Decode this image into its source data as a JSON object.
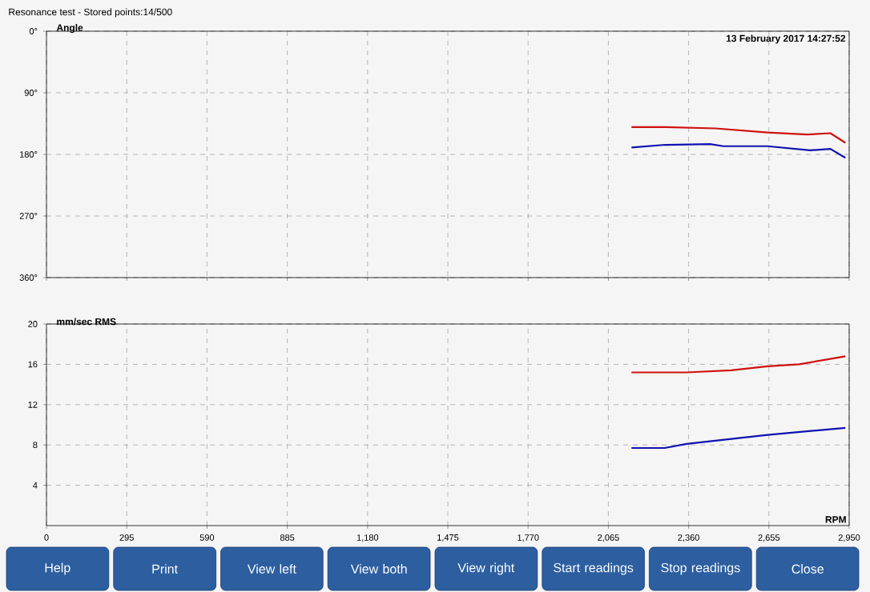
{
  "chart_data": [
    {
      "type": "line",
      "title": "Resonance test - Stored points:14/500",
      "ylabel": "Angle",
      "annotations": [
        "13 February 2017 14:27:52"
      ],
      "xlim": [
        0,
        2950
      ],
      "xticks": [
        0,
        295,
        590,
        885,
        1180,
        1475,
        1770,
        2065,
        2360,
        2655,
        2950
      ],
      "ylim": [
        360,
        0
      ],
      "yticks": [
        {
          "value": 0,
          "label": "0°"
        },
        {
          "value": 90,
          "label": "90°"
        },
        {
          "value": 180,
          "label": "180°"
        },
        {
          "value": 270,
          "label": "270°"
        },
        {
          "value": 360,
          "label": "360°"
        }
      ],
      "tick_labels": "y",
      "grid": true,
      "marker": "none",
      "line_style": "solid",
      "series": [
        {
          "color": "#d01010",
          "x": [
            2150,
            2274,
            2459,
            2650,
            2795,
            2881,
            2936
          ],
          "values": [
            140,
            140,
            142,
            148,
            151,
            149,
            163
          ]
        },
        {
          "color": "#1010b0",
          "x": [
            2150,
            2274,
            2439,
            2488,
            2650,
            2806,
            2881,
            2936
          ],
          "values": [
            170,
            166,
            165,
            168,
            168,
            174,
            172,
            185
          ]
        }
      ]
    },
    {
      "type": "line",
      "ylabel": "mm/sec RMS",
      "xlabel": "RPM",
      "xlim": [
        0,
        2950
      ],
      "xticks": [
        0,
        295,
        590,
        885,
        {
          "value": 1180,
          "label": "1,180"
        },
        {
          "value": 1475,
          "label": "1,475"
        },
        {
          "value": 1770,
          "label": "1,770"
        },
        {
          "value": 2065,
          "label": "2,065"
        },
        {
          "value": 2360,
          "label": "2,360"
        },
        {
          "value": 2655,
          "label": "2,655"
        },
        {
          "value": 2950,
          "label": "2,950"
        }
      ],
      "ylim": [
        0,
        20
      ],
      "yticks": [
        4,
        8,
        12,
        16,
        20
      ],
      "grid": true,
      "marker": "none",
      "line_style": "solid",
      "series": [
        {
          "color": "#d01010",
          "x": [
            2150,
            2200,
            2352,
            2516,
            2650,
            2766,
            2936
          ],
          "values": [
            15.2,
            15.2,
            15.2,
            15.4,
            15.8,
            16.0,
            16.8
          ]
        },
        {
          "color": "#1010b0",
          "x": [
            2150,
            2272,
            2352,
            2650,
            2936
          ],
          "values": [
            7.7,
            7.7,
            8.1,
            9.0,
            9.7
          ]
        }
      ]
    },
    {
      "type": "other",
      "annotations": [
        "Help",
        "Print",
        "View left",
        "View both",
        "View right",
        "Start readings",
        "Stop readings",
        "Close"
      ]
    }
  ]
}
